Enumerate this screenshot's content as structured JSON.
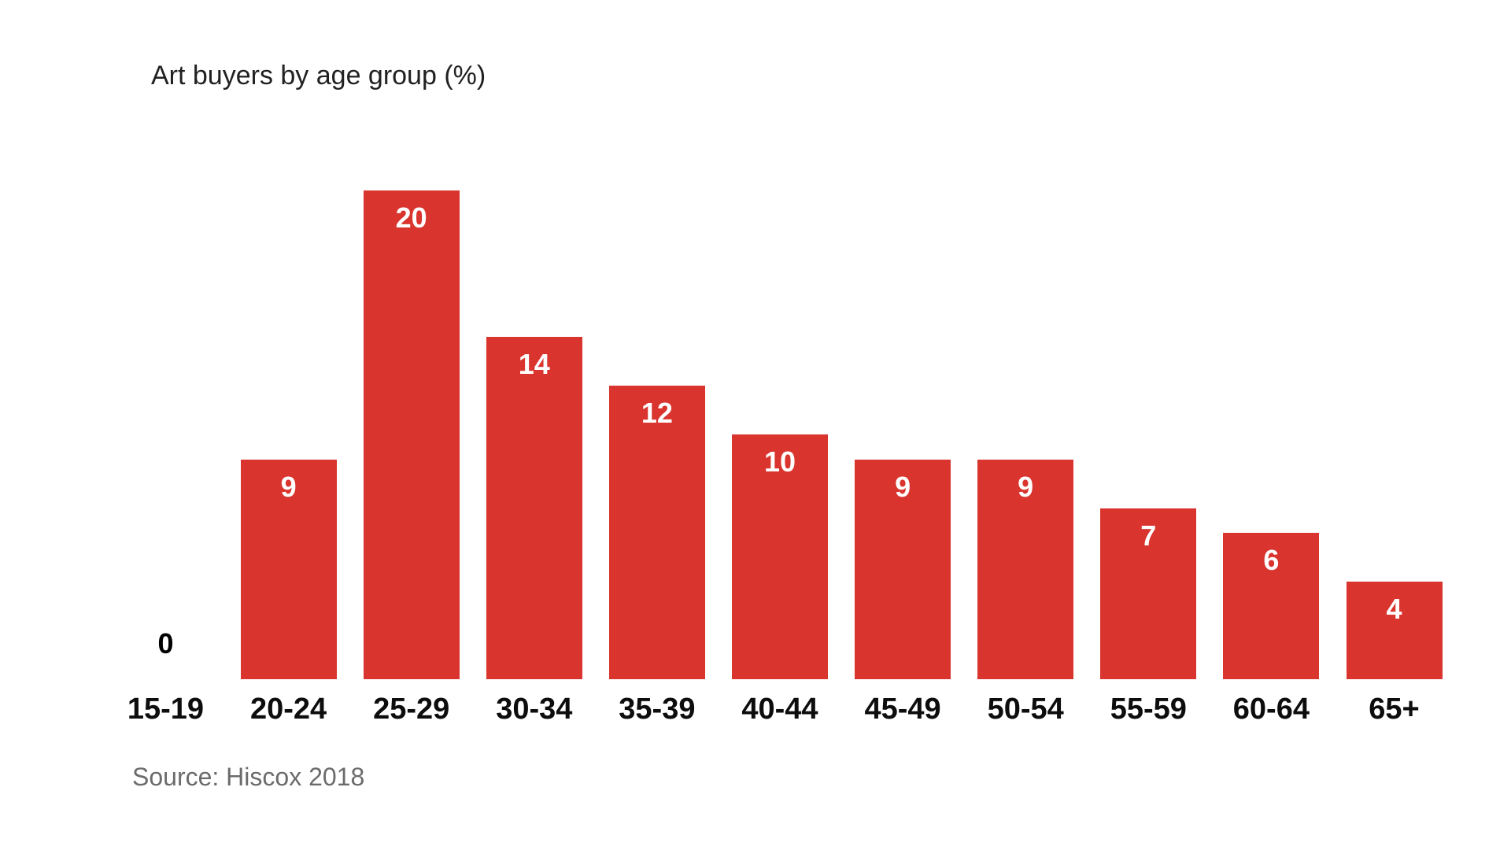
{
  "chart": {
    "title": "Art buyers by age group (%)",
    "source": "Source: Hiscox 2018"
  },
  "chart_data": {
    "type": "bar",
    "title": "Art buyers by age group (%)",
    "source": "Source: Hiscox 2018",
    "categories": [
      "15-19",
      "20-24",
      "25-29",
      "30-34",
      "35-39",
      "40-44",
      "45-49",
      "50-54",
      "55-59",
      "60-64",
      "65+"
    ],
    "values": [
      0,
      9,
      20,
      14,
      12,
      10,
      9,
      9,
      7,
      6,
      4
    ],
    "xlabel": "",
    "ylabel": "",
    "ylim": [
      0,
      20
    ],
    "grid": "off",
    "legend": "none",
    "value_labels_shown": true,
    "colors": {
      "bar": "#d9342e",
      "value_label": "#ffffff",
      "zero_value_label": "#000000",
      "axis_tick_label": "#0d0d0d",
      "title": "#212121",
      "source": "#6b6b6b",
      "background": "#ffffff"
    }
  }
}
